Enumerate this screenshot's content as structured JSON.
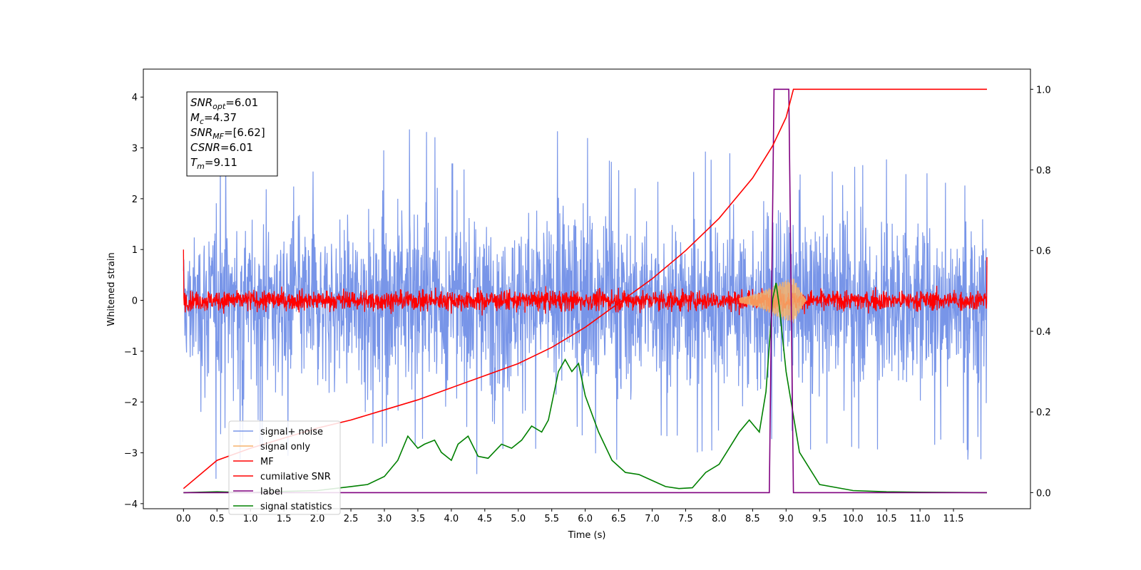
{
  "chart_data": {
    "type": "line",
    "xlabel": "Time (s)",
    "ylabel": "Whitened strain",
    "xlim": [
      -0.6,
      12.65
    ],
    "ylim": [
      -4.1,
      4.55
    ],
    "ylim_right": [
      -0.04,
      1.05
    ],
    "x_ticks": [
      "0.0",
      "0.5",
      "1.0",
      "1.5",
      "2.0",
      "2.5",
      "3.0",
      "3.5",
      "4.0",
      "4.5",
      "5.0",
      "5.5",
      "6.0",
      "6.5",
      "7.0",
      "7.5",
      "8.0",
      "8.5",
      "9.0",
      "9.5",
      "10.0",
      "10.5",
      "11.0",
      "11.5"
    ],
    "y_ticks_left": [
      "4",
      "3",
      "2",
      "1",
      "0",
      "−1",
      "−2",
      "−3",
      "−4"
    ],
    "y_ticks_right": [
      "1.0",
      "0.8",
      "0.6",
      "0.4",
      "0.2",
      "0.0"
    ],
    "legend_position": "lower-left",
    "annotation": {
      "lines": [
        {
          "sym": "SNR",
          "sub": "opt",
          "val": "=6.01"
        },
        {
          "sym": "M",
          "sub": "c",
          "val": "=4.37"
        },
        {
          "sym": "SNR",
          "sub": "MF",
          "val": "=[6.62]"
        },
        {
          "sym": "CSNR",
          "sub": "",
          "val": "=6.01"
        },
        {
          "sym": "T",
          "sub": "m",
          "val": "=9.11"
        }
      ]
    },
    "series": [
      {
        "name": "signal+ noise",
        "color": "#7895e8",
        "axis": "left",
        "envelope_t": [
          0.0,
          0.5,
          1.0,
          1.5,
          2.0,
          2.5,
          3.0,
          3.5,
          4.0,
          4.5,
          5.0,
          5.5,
          6.0,
          6.5,
          7.0,
          7.5,
          8.0,
          8.5,
          9.0,
          9.5,
          10.0,
          10.5,
          11.0,
          11.5,
          12.0
        ],
        "envelope_upper": [
          1.6,
          3.2,
          2.6,
          2.5,
          2.6,
          2.7,
          3.1,
          4.15,
          3.0,
          2.7,
          3.0,
          3.4,
          3.4,
          3.0,
          2.6,
          2.5,
          3.3,
          2.6,
          3.0,
          2.6,
          2.7,
          2.8,
          2.7,
          2.6,
          2.4
        ],
        "envelope_lower": [
          -2.6,
          -3.7,
          -2.9,
          -3.2,
          -3.0,
          -3.1,
          -3.2,
          -3.1,
          -3.5,
          -3.5,
          -3.0,
          -3.1,
          -3.0,
          -3.3,
          -3.0,
          -3.1,
          -3.0,
          -3.0,
          -2.8,
          -3.2,
          -3.1,
          -3.0,
          -3.2,
          -3.2,
          -3.4
        ]
      },
      {
        "name": "signal only",
        "color": "#f5b26b",
        "axis": "left",
        "chirp_t": [
          8.3,
          8.6,
          8.9,
          9.11,
          9.3
        ],
        "chirp_amplitude": [
          0.05,
          0.15,
          0.35,
          0.45,
          0.0
        ]
      },
      {
        "name": "MF",
        "color": "#ff0000",
        "axis": "left",
        "noise_amplitude_typical": 0.45
      },
      {
        "name": "cumilative SNR",
        "color": "#ff0000",
        "axis": "right",
        "x": [
          0.0,
          0.5,
          1.0,
          1.5,
          2.0,
          2.5,
          3.0,
          3.5,
          4.0,
          4.5,
          5.0,
          5.5,
          6.0,
          6.5,
          7.0,
          7.5,
          8.0,
          8.5,
          8.8,
          9.0,
          9.11,
          12.0
        ],
        "y": [
          0.01,
          0.08,
          0.11,
          0.135,
          0.16,
          0.18,
          0.205,
          0.23,
          0.26,
          0.29,
          0.32,
          0.36,
          0.41,
          0.47,
          0.53,
          0.6,
          0.68,
          0.78,
          0.86,
          0.93,
          1.0,
          1.0
        ]
      },
      {
        "name": "label",
        "color": "#800080",
        "axis": "right",
        "x": [
          0.0,
          8.75,
          8.82,
          9.04,
          9.11,
          12.0
        ],
        "y": [
          0.0,
          0.0,
          1.0,
          1.0,
          0.0,
          0.0
        ]
      },
      {
        "name": "signal statistics",
        "color": "#008000",
        "axis": "right",
        "x": [
          0.0,
          0.5,
          1.0,
          1.5,
          2.0,
          2.5,
          2.75,
          3.0,
          3.2,
          3.35,
          3.5,
          3.6,
          3.75,
          3.85,
          4.0,
          4.1,
          4.25,
          4.4,
          4.55,
          4.75,
          4.9,
          5.05,
          5.2,
          5.35,
          5.45,
          5.6,
          5.7,
          5.8,
          5.9,
          6.0,
          6.2,
          6.4,
          6.6,
          6.8,
          7.0,
          7.2,
          7.4,
          7.6,
          7.8,
          8.0,
          8.15,
          8.3,
          8.45,
          8.6,
          8.7,
          8.8,
          8.85,
          8.9,
          9.0,
          9.2,
          9.5,
          10.0,
          10.5,
          11.0,
          12.0
        ],
        "y": [
          0.0,
          0.002,
          0.0,
          0.003,
          0.005,
          0.015,
          0.02,
          0.04,
          0.08,
          0.14,
          0.11,
          0.12,
          0.13,
          0.1,
          0.08,
          0.12,
          0.14,
          0.09,
          0.085,
          0.12,
          0.11,
          0.13,
          0.165,
          0.15,
          0.18,
          0.3,
          0.33,
          0.3,
          0.32,
          0.24,
          0.15,
          0.08,
          0.05,
          0.045,
          0.03,
          0.015,
          0.01,
          0.012,
          0.05,
          0.07,
          0.11,
          0.15,
          0.18,
          0.15,
          0.25,
          0.48,
          0.52,
          0.46,
          0.3,
          0.1,
          0.02,
          0.005,
          0.002,
          0.001,
          0.0
        ]
      }
    ]
  }
}
